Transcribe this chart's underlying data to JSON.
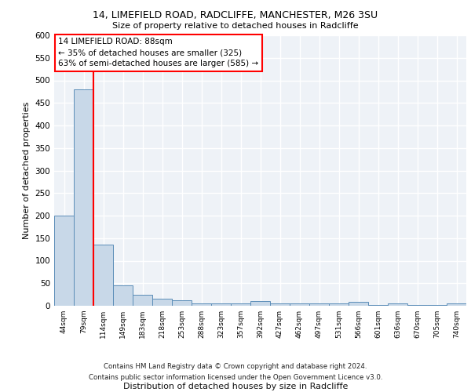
{
  "title_line1": "14, LIMEFIELD ROAD, RADCLIFFE, MANCHESTER, M26 3SU",
  "title_line2": "Size of property relative to detached houses in Radcliffe",
  "xlabel": "Distribution of detached houses by size in Radcliffe",
  "ylabel": "Number of detached properties",
  "footer_line1": "Contains HM Land Registry data © Crown copyright and database right 2024.",
  "footer_line2": "Contains public sector information licensed under the Open Government Licence v3.0.",
  "categories": [
    "44sqm",
    "79sqm",
    "114sqm",
    "149sqm",
    "183sqm",
    "218sqm",
    "253sqm",
    "288sqm",
    "323sqm",
    "357sqm",
    "392sqm",
    "427sqm",
    "462sqm",
    "497sqm",
    "531sqm",
    "566sqm",
    "601sqm",
    "636sqm",
    "670sqm",
    "705sqm",
    "740sqm"
  ],
  "values": [
    200,
    480,
    135,
    45,
    25,
    15,
    12,
    6,
    5,
    5,
    10,
    5,
    5,
    5,
    5,
    8,
    2,
    5,
    2,
    2,
    5
  ],
  "bar_color": "#c8d8e8",
  "bar_edge_color": "#5b8db8",
  "ylim": [
    0,
    600
  ],
  "yticks": [
    0,
    50,
    100,
    150,
    200,
    250,
    300,
    350,
    400,
    450,
    500,
    550,
    600
  ],
  "red_line_x": 1.5,
  "annotation_box_text_line1": "14 LIMEFIELD ROAD: 88sqm",
  "annotation_box_text_line2": "← 35% of detached houses are smaller (325)",
  "annotation_box_text_line3": "63% of semi-detached houses are larger (585) →",
  "bg_color": "#eef2f7",
  "grid_color": "#ffffff"
}
